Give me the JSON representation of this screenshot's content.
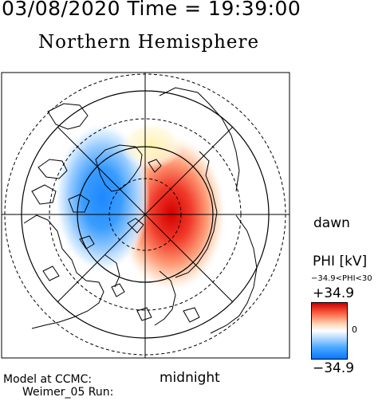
{
  "header": {
    "time_line": "03/08/2020 Time = 19:39:00",
    "hemisphere_title": "Northern Hemisphere"
  },
  "orientation_labels": {
    "dawn": "dawn",
    "midnight": "midnight"
  },
  "colorbar": {
    "quantity_label": "PHI [kV]",
    "range_text": "−34.9<PHI<30",
    "max_label": "+34.9",
    "zero_label": "0",
    "min_label": "−34.9",
    "colors": {
      "positive": "#cc0000",
      "neutral": "#ffffff",
      "negative": "#0a78ff"
    }
  },
  "footer": {
    "model_label": "Model at CCMC:",
    "run_label": "Weimer_05 Run:"
  }
}
